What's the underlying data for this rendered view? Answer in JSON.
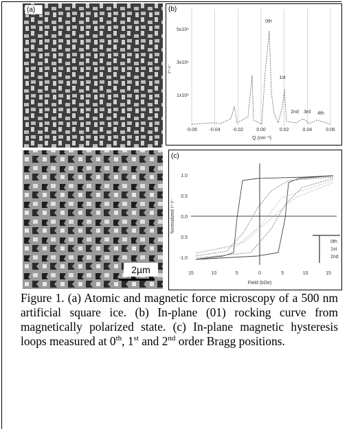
{
  "panels": {
    "a": {
      "label": "(a)",
      "scale_bar": "2µm"
    },
    "b": {
      "label": "(b)",
      "x_label": "Q (nm⁻¹)",
      "y_label": "I⁺-I⁻",
      "x_ticks": [
        "-0.06",
        "-0.04",
        "-0.02",
        "0.00",
        "0.02",
        "0.04",
        "0.06"
      ],
      "y_ticks": [
        "5x10⁶",
        "3x10⁶",
        "1x10⁶"
      ],
      "peaks": [
        "0th",
        "1st",
        "2nd",
        "3rd",
        "4th"
      ]
    },
    "c": {
      "label": "(c)",
      "x_label": "Field (kOe)",
      "y_label": "Normalized I⁺-I⁻",
      "x_ticks": [
        "15",
        "10",
        "5",
        "0",
        "5",
        "10",
        "15"
      ],
      "y_ticks": [
        "1.0",
        "0.5",
        "0.0",
        "0.5",
        "-1.0"
      ],
      "legend": [
        "0th",
        "1st",
        "2nd"
      ]
    }
  },
  "caption": {
    "parts": [
      "Figure 1.  (a) Atomic and magnetic force microscopy of a 500 nm artificial square ice. (b) In-plane (01) rocking curve from magnetically polarized state. (c) In-plane magnetic hysteresis loops measured at 0",
      "th",
      ", 1",
      "st",
      " and 2",
      "nd",
      " order Bragg positions."
    ]
  }
}
